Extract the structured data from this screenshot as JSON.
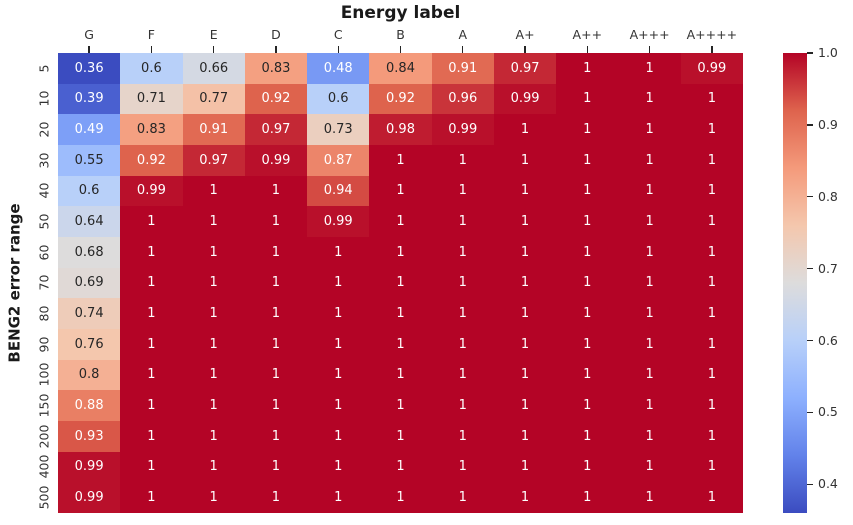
{
  "chart_data": {
    "type": "heatmap",
    "title": "Energy label",
    "xlabel": "Energy label",
    "ylabel": "BENG2 error range",
    "x_categories": [
      "G",
      "F",
      "E",
      "D",
      "C",
      "B",
      "A",
      "A+",
      "A++",
      "A+++",
      "A++++"
    ],
    "y_categories": [
      "5",
      "10",
      "20",
      "30",
      "40",
      "50",
      "60",
      "70",
      "80",
      "90",
      "100",
      "150",
      "200",
      "400",
      "500"
    ],
    "values": [
      [
        0.36,
        0.6,
        0.66,
        0.83,
        0.48,
        0.84,
        0.91,
        0.97,
        1,
        1,
        0.99
      ],
      [
        0.39,
        0.71,
        0.77,
        0.92,
        0.6,
        0.92,
        0.96,
        0.99,
        1,
        1,
        1
      ],
      [
        0.49,
        0.83,
        0.91,
        0.97,
        0.73,
        0.98,
        0.99,
        1,
        1,
        1,
        1
      ],
      [
        0.55,
        0.92,
        0.97,
        0.99,
        0.87,
        1,
        1,
        1,
        1,
        1,
        1
      ],
      [
        0.6,
        0.99,
        1,
        1,
        0.94,
        1,
        1,
        1,
        1,
        1,
        1
      ],
      [
        0.64,
        1,
        1,
        1,
        0.99,
        1,
        1,
        1,
        1,
        1,
        1
      ],
      [
        0.68,
        1,
        1,
        1,
        1,
        1,
        1,
        1,
        1,
        1,
        1
      ],
      [
        0.69,
        1,
        1,
        1,
        1,
        1,
        1,
        1,
        1,
        1,
        1
      ],
      [
        0.74,
        1,
        1,
        1,
        1,
        1,
        1,
        1,
        1,
        1,
        1
      ],
      [
        0.76,
        1,
        1,
        1,
        1,
        1,
        1,
        1,
        1,
        1,
        1
      ],
      [
        0.8,
        1,
        1,
        1,
        1,
        1,
        1,
        1,
        1,
        1,
        1
      ],
      [
        0.88,
        1,
        1,
        1,
        1,
        1,
        1,
        1,
        1,
        1,
        1
      ],
      [
        0.93,
        1,
        1,
        1,
        1,
        1,
        1,
        1,
        1,
        1,
        1
      ],
      [
        0.99,
        1,
        1,
        1,
        1,
        1,
        1,
        1,
        1,
        1,
        1
      ],
      [
        0.99,
        1,
        1,
        1,
        1,
        1,
        1,
        1,
        1,
        1,
        1
      ]
    ],
    "vmin": 0.36,
    "vmax": 1.0,
    "colormap": "coolwarm",
    "colormap_stops": [
      "#3B4CC0",
      "#6282EA",
      "#8DB0FE",
      "#B8D0F9",
      "#DDDCDC",
      "#F4C7AD",
      "#F49A7B",
      "#DE634D",
      "#B40426"
    ],
    "colorbar_ticks": [
      1.0,
      0.9,
      0.8,
      0.7,
      0.6,
      0.5,
      0.4
    ],
    "annot_text_dark": "#262626",
    "annot_text_light": "#ffffff",
    "grid": false,
    "legend": "colorbar-right",
    "axis_ranges": {
      "colorbar_min": 0.36,
      "colorbar_max": 1.0
    }
  }
}
